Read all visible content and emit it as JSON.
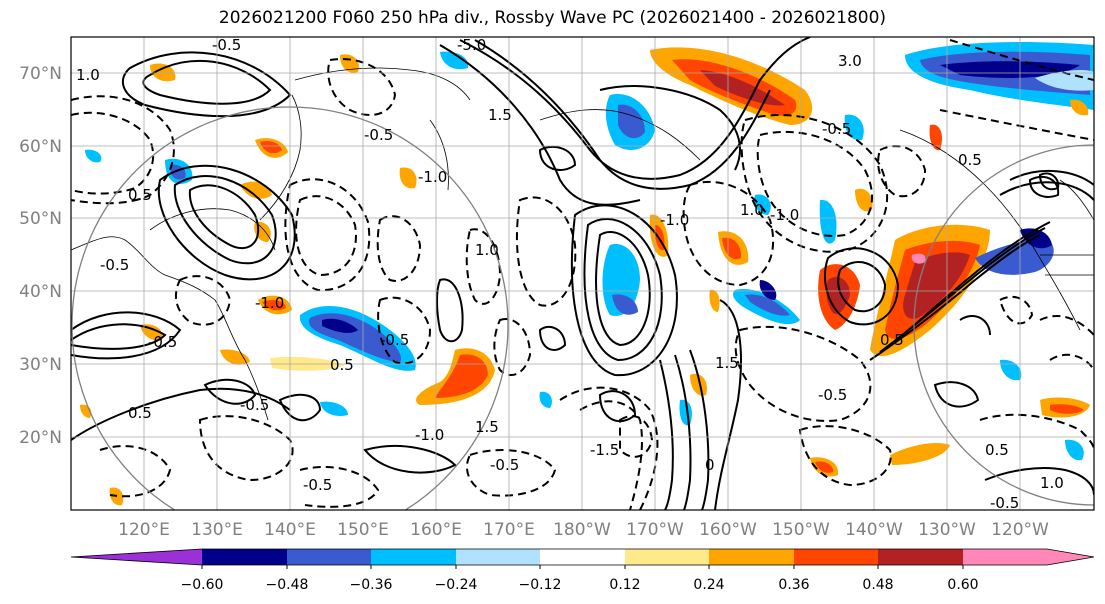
{
  "title": "2026021200 F060 250 hPa div., Rossby Wave PC (2026021400 - 2026021800)",
  "lat_ticks": [
    "70°N",
    "60°N",
    "50°N",
    "40°N",
    "30°N",
    "20°N"
  ],
  "lon_ticks": [
    "120°E",
    "130°E",
    "140°E",
    "150°E",
    "160°E",
    "170°E",
    "180°W",
    "170°W",
    "160°W",
    "150°W",
    "140°W",
    "130°W",
    "120°W"
  ],
  "colorbar": {
    "labels": [
      "−0.60",
      "−0.48",
      "−0.36",
      "−0.24",
      "−0.12",
      "0.12",
      "0.24",
      "0.36",
      "0.48",
      "0.60"
    ],
    "colors": [
      "#9b30d9",
      "#00008b",
      "#3a5bd0",
      "#00bfff",
      "#b0e2ff",
      "#ffffff",
      "#ffe98a",
      "#ffa500",
      "#ff4500",
      "#b22222",
      "#ff88b8"
    ]
  },
  "contour_labels": [
    "-5.0",
    "3.0",
    "-0.5",
    "1.0",
    "1.5",
    "-1.0",
    "-0.5",
    "0.5",
    "-1.0",
    "-0.5",
    "0.5",
    "-1.0",
    "1.0",
    "-1.0",
    "-0.5",
    "0.5",
    "-0.5",
    "-0.5",
    "0.5",
    "1.5",
    "-0.5",
    "-1.0",
    "1.5",
    "0.5",
    "-0.5",
    "0.5",
    "1.0",
    "0",
    "-0.5",
    "-0.5",
    "-1.5",
    "1.0",
    "-0.5"
  ]
}
